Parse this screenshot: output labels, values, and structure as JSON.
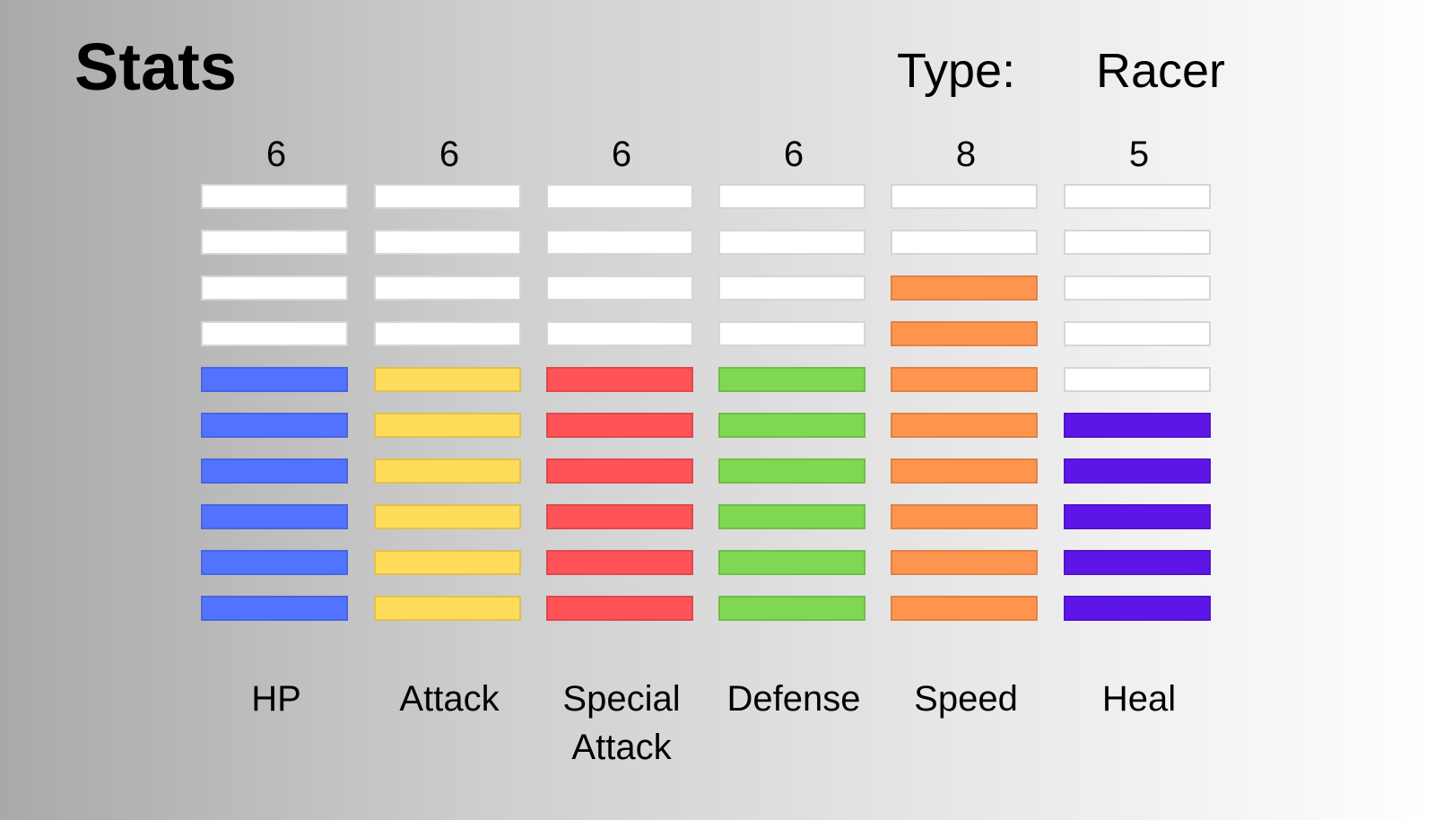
{
  "title": "Stats",
  "type": {
    "label": "Type:",
    "value": "Racer"
  },
  "chart_data": {
    "type": "bar",
    "max": 10,
    "categories": [
      "HP",
      "Attack",
      "Special Attack",
      "Defense",
      "Speed",
      "Heal"
    ],
    "values": [
      6,
      6,
      6,
      6,
      8,
      5
    ],
    "colors": [
      "#5273ff",
      "#ffdc5a",
      "#ff5358",
      "#80d852",
      "#ff944e",
      "#5e16e8"
    ],
    "empty_color": "#ffffff",
    "title": "Stats"
  },
  "stats": [
    {
      "name": "HP",
      "value": "6"
    },
    {
      "name": "Attack",
      "value": "6"
    },
    {
      "name": "Special Attack",
      "value": "6"
    },
    {
      "name": "Defense",
      "value": "6"
    },
    {
      "name": "Speed",
      "value": "8"
    },
    {
      "name": "Heal",
      "value": "5"
    }
  ]
}
